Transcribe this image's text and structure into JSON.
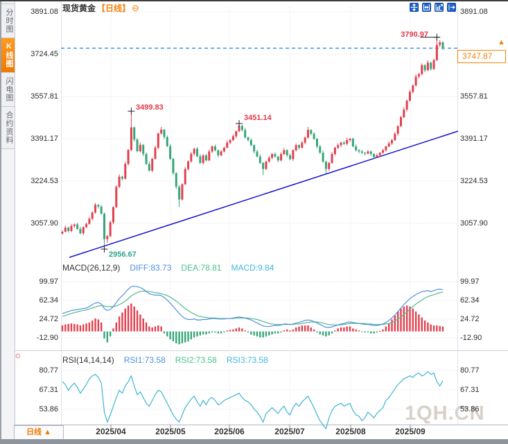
{
  "sidebar": {
    "tabs": [
      {
        "label": "分时图",
        "active": false
      },
      {
        "label": "K线图",
        "active": true
      },
      {
        "label": "闪电图",
        "active": false
      },
      {
        "label": "合约资料",
        "active": false
      }
    ]
  },
  "header": {
    "symbol": "现货黄金",
    "period": "【日线】",
    "zoom_icon": "⊖"
  },
  "toolbar": {
    "icons": [
      "crosshair-icon",
      "axis-scale-icon",
      "indicator-chart-icon",
      "exit-icon"
    ]
  },
  "main_axis": {
    "labels": [
      "3891.08",
      "3724.45",
      "3557.81",
      "3391.17",
      "3224.53",
      "3057.90"
    ]
  },
  "x_axis": {
    "labels": [
      "2025/04",
      "2025/05",
      "2025/06",
      "2025/07",
      "2025/08",
      "2025/09"
    ]
  },
  "macd_panel": {
    "title": "MACD(26,12,9)",
    "diff_label": "DIFF:83.73",
    "dea_label": "DEA:78.81",
    "macd_label": "MACD:9.84",
    "axis": [
      "99.97",
      "62.34",
      "24.72",
      "-12.90"
    ]
  },
  "rsi_panel": {
    "title": "RSI(14,14,14)",
    "rsi1_label": "RSI1:73.58",
    "rsi2_label": "RSI2:73.58",
    "rsi3_label": "RSI3:73.58",
    "axis": [
      "80.77",
      "67.31",
      "53.86"
    ]
  },
  "annotations": {
    "high_all": "3790.97",
    "high_april": "3499.83",
    "high_june": "3451.14",
    "low": "2956.67"
  },
  "price_box": {
    "value": "3747.87",
    "pin": "▲"
  },
  "footer": {
    "period_label": "日线",
    "arrow": "▲"
  },
  "watermark": "1QH.CN",
  "colors": {
    "up": "#e23f4d",
    "down": "#36a678",
    "accent_orange": "#f5820b",
    "diff_line": "#4f8fe0",
    "dea_line": "#52b98a",
    "rsi_line": "#3fb3d4",
    "trend_line": "#1111cc",
    "price_line": "#2e8be6",
    "annotation_red": "#e0394a",
    "annotation_green": "#2ea58c",
    "grid": "#dcdfec"
  },
  "chart_data": [
    {
      "type": "candlestick",
      "title": "现货黄金 日线",
      "x_labels": [
        "2025/04",
        "2025/05",
        "2025/06",
        "2025/07",
        "2025/08",
        "2025/09"
      ],
      "y_ticks": [
        3891.08,
        3724.45,
        3557.81,
        3391.17,
        3224.53,
        3057.9
      ],
      "current_price": 3747.87,
      "marked_high": 3790.97,
      "marked_low": 2956.67,
      "local_highs": [
        3499.83,
        3451.14
      ],
      "trendline": {
        "from_price": 2932,
        "to_price": 3420
      },
      "ohlc": [
        [
          3018,
          3030,
          3014,
          3025
        ],
        [
          3025,
          3049,
          3022,
          3041
        ],
        [
          3041,
          3045,
          3022,
          3028
        ],
        [
          3028,
          3055,
          3023,
          3048
        ],
        [
          3048,
          3057,
          3040,
          3054
        ],
        [
          3054,
          3060,
          3032,
          3036
        ],
        [
          3036,
          3045,
          3014,
          3019
        ],
        [
          3019,
          3047,
          3012,
          3043
        ],
        [
          3043,
          3061,
          3039,
          3056
        ],
        [
          3056,
          3084,
          3053,
          3076
        ],
        [
          3076,
          3105,
          3070,
          3101
        ],
        [
          3101,
          3138,
          3096,
          3131
        ],
        [
          3131,
          3134,
          3116,
          3124
        ],
        [
          3124,
          3130,
          3092,
          3096
        ],
        [
          3096,
          3101,
          2956.67,
          2996
        ],
        [
          2996,
          3012,
          2981,
          3008
        ],
        [
          3008,
          3069,
          3003,
          3062
        ],
        [
          3062,
          3125,
          3054,
          3122
        ],
        [
          3122,
          3208,
          3118,
          3202
        ],
        [
          3202,
          3251,
          3197,
          3242
        ],
        [
          3242,
          3246,
          3227,
          3234
        ],
        [
          3234,
          3300,
          3231,
          3292
        ],
        [
          3292,
          3351,
          3286,
          3347
        ],
        [
          3347,
          3499.83,
          3342,
          3436
        ],
        [
          3436,
          3439,
          3380,
          3388
        ],
        [
          3388,
          3394,
          3338,
          3342
        ],
        [
          3342,
          3376,
          3337,
          3367
        ],
        [
          3367,
          3371,
          3323,
          3331
        ],
        [
          3331,
          3337,
          3288,
          3292
        ],
        [
          3292,
          3301,
          3261,
          3266
        ],
        [
          3266,
          3316,
          3259,
          3312
        ],
        [
          3312,
          3364,
          3309,
          3356
        ],
        [
          3356,
          3416,
          3350,
          3412
        ],
        [
          3412,
          3438,
          3407,
          3427
        ],
        [
          3427,
          3430,
          3390,
          3398
        ],
        [
          3398,
          3404,
          3358,
          3362
        ],
        [
          3362,
          3371,
          3307,
          3312
        ],
        [
          3312,
          3316,
          3249,
          3256
        ],
        [
          3256,
          3259,
          3194,
          3202
        ],
        [
          3202,
          3208,
          3122,
          3152
        ],
        [
          3152,
          3216,
          3148,
          3212
        ],
        [
          3212,
          3280,
          3209,
          3272
        ],
        [
          3272,
          3306,
          3266,
          3302
        ],
        [
          3302,
          3339,
          3297,
          3332
        ],
        [
          3332,
          3355,
          3324,
          3352
        ],
        [
          3352,
          3358,
          3318,
          3322
        ],
        [
          3322,
          3331,
          3291,
          3296
        ],
        [
          3296,
          3330,
          3289,
          3326
        ],
        [
          3326,
          3331,
          3302,
          3306
        ],
        [
          3306,
          3349,
          3303,
          3341
        ],
        [
          3341,
          3365,
          3335,
          3361
        ],
        [
          3361,
          3368,
          3341,
          3346
        ],
        [
          3346,
          3349,
          3318,
          3326
        ],
        [
          3326,
          3347,
          3322,
          3341
        ],
        [
          3341,
          3360,
          3337,
          3356
        ],
        [
          3356,
          3384,
          3353,
          3376
        ],
        [
          3376,
          3390,
          3370,
          3386
        ],
        [
          3386,
          3408,
          3381,
          3401
        ],
        [
          3401,
          3424,
          3393,
          3421
        ],
        [
          3421,
          3451.14,
          3417,
          3442
        ],
        [
          3442,
          3446,
          3419,
          3426
        ],
        [
          3426,
          3434,
          3393,
          3396
        ],
        [
          3396,
          3400,
          3380,
          3386
        ],
        [
          3386,
          3393,
          3361,
          3366
        ],
        [
          3366,
          3369,
          3333,
          3341
        ],
        [
          3341,
          3347,
          3317,
          3321
        ],
        [
          3321,
          3330,
          3291,
          3296
        ],
        [
          3296,
          3300,
          3248,
          3272
        ],
        [
          3272,
          3305,
          3268,
          3301
        ],
        [
          3301,
          3324,
          3298,
          3316
        ],
        [
          3316,
          3335,
          3310,
          3331
        ],
        [
          3331,
          3338,
          3316,
          3321
        ],
        [
          3321,
          3324,
          3298,
          3306
        ],
        [
          3306,
          3337,
          3302,
          3331
        ],
        [
          3331,
          3355,
          3326,
          3346
        ],
        [
          3346,
          3350,
          3319,
          3326
        ],
        [
          3326,
          3332,
          3306,
          3311
        ],
        [
          3311,
          3350,
          3304,
          3346
        ],
        [
          3346,
          3373,
          3341,
          3366
        ],
        [
          3366,
          3369,
          3348,
          3356
        ],
        [
          3356,
          3382,
          3352,
          3376
        ],
        [
          3376,
          3400,
          3369,
          3396
        ],
        [
          3396,
          3438,
          3391,
          3426
        ],
        [
          3426,
          3429,
          3404,
          3411
        ],
        [
          3411,
          3418,
          3386,
          3391
        ],
        [
          3391,
          3394,
          3353,
          3361
        ],
        [
          3361,
          3367,
          3332,
          3336
        ],
        [
          3336,
          3345,
          3296,
          3301
        ],
        [
          3301,
          3305,
          3255,
          3272
        ],
        [
          3272,
          3300,
          3265,
          3296
        ],
        [
          3296,
          3339,
          3293,
          3331
        ],
        [
          3331,
          3360,
          3325,
          3356
        ],
        [
          3356,
          3373,
          3351,
          3366
        ],
        [
          3366,
          3379,
          3358,
          3376
        ],
        [
          3376,
          3382,
          3367,
          3371
        ],
        [
          3371,
          3395,
          3366,
          3386
        ],
        [
          3386,
          3395,
          3379,
          3391
        ],
        [
          3391,
          3396,
          3357,
          3361
        ],
        [
          3361,
          3369,
          3341,
          3346
        ],
        [
          3346,
          3350,
          3333,
          3341
        ],
        [
          3341,
          3348,
          3331,
          3336
        ],
        [
          3336,
          3339,
          3325,
          3333
        ],
        [
          3333,
          3347,
          3329,
          3341
        ],
        [
          3341,
          3345,
          3323,
          3331
        ],
        [
          3331,
          3335,
          3311,
          3319
        ],
        [
          3319,
          3333,
          3315,
          3326
        ],
        [
          3326,
          3339,
          3318,
          3336
        ],
        [
          3336,
          3352,
          3332,
          3346
        ],
        [
          3346,
          3364,
          3340,
          3361
        ],
        [
          3361,
          3380,
          3357,
          3373
        ],
        [
          3373,
          3390,
          3367,
          3386
        ],
        [
          3386,
          3418,
          3382,
          3411
        ],
        [
          3411,
          3444,
          3403,
          3441
        ],
        [
          3441,
          3482,
          3437,
          3476
        ],
        [
          3476,
          3515,
          3472,
          3506
        ],
        [
          3506,
          3545,
          3499,
          3541
        ],
        [
          3541,
          3584,
          3537,
          3576
        ],
        [
          3576,
          3605,
          3569,
          3601
        ],
        [
          3601,
          3645,
          3597,
          3636
        ],
        [
          3636,
          3650,
          3628,
          3646
        ],
        [
          3646,
          3688,
          3641,
          3681
        ],
        [
          3681,
          3685,
          3653,
          3661
        ],
        [
          3661,
          3700,
          3657,
          3691
        ],
        [
          3691,
          3695,
          3659,
          3666
        ],
        [
          3666,
          3707,
          3662,
          3701
        ],
        [
          3701,
          3790.97,
          3696,
          3761
        ],
        [
          3761,
          3779,
          3752,
          3771
        ],
        [
          3771,
          3776,
          3740,
          3747.87
        ]
      ]
    },
    {
      "type": "macd",
      "params": [
        26,
        12,
        9
      ],
      "y_ticks": [
        99.97,
        62.34,
        24.72,
        -12.9
      ],
      "last": {
        "diff": 83.73,
        "dea": 78.81,
        "macd": 9.84
      },
      "diff": [
        36,
        38,
        40,
        42,
        43,
        44,
        45,
        46,
        47,
        50,
        54,
        57,
        58,
        55,
        46,
        42,
        44,
        50,
        58,
        66,
        72,
        78,
        85,
        90,
        91,
        90,
        88,
        85,
        80,
        76,
        74,
        73,
        73,
        72,
        68,
        63,
        57,
        50,
        43,
        36,
        30,
        26,
        24,
        24,
        25,
        23,
        23,
        24,
        24,
        25,
        26,
        26,
        25,
        25,
        25,
        26,
        26,
        27,
        28,
        29,
        28,
        27,
        25,
        23,
        20,
        17,
        14,
        11,
        10,
        10,
        11,
        12,
        12,
        13,
        15,
        15,
        14,
        15,
        17,
        18,
        20,
        22,
        23,
        22,
        20,
        17,
        14,
        11,
        8,
        8,
        9,
        11,
        13,
        15,
        16,
        18,
        19,
        18,
        17,
        16,
        15,
        14,
        14,
        13,
        12,
        12,
        13,
        15,
        18,
        22,
        27,
        33,
        40,
        47,
        54,
        60,
        66,
        70,
        74,
        77,
        80,
        81,
        82,
        80,
        82,
        84,
        85,
        83.73
      ],
      "dea": [
        30,
        32,
        34,
        36,
        38,
        39,
        41,
        42,
        43,
        45,
        47,
        49,
        51,
        52,
        51,
        50,
        50,
        50,
        51,
        54,
        57,
        61,
        66,
        71,
        75,
        78,
        80,
        81,
        81,
        80,
        79,
        78,
        77,
        76,
        74,
        72,
        69,
        65,
        61,
        56,
        51,
        46,
        42,
        38,
        35,
        32,
        30,
        29,
        28,
        27,
        27,
        27,
        26,
        26,
        26,
        26,
        26,
        26,
        27,
        27,
        27,
        27,
        27,
        26,
        25,
        24,
        22,
        20,
        18,
        16,
        15,
        14,
        14,
        14,
        14,
        14,
        14,
        14,
        15,
        15,
        16,
        17,
        18,
        19,
        19,
        19,
        18,
        17,
        15,
        14,
        13,
        13,
        13,
        13,
        14,
        15,
        16,
        16,
        16,
        16,
        16,
        16,
        15,
        15,
        14,
        14,
        14,
        14,
        15,
        16,
        18,
        21,
        25,
        29,
        34,
        39,
        45,
        50,
        55,
        59,
        63,
        67,
        70,
        72,
        74,
        76,
        78,
        78.81
      ],
      "hist": [
        12,
        14,
        15,
        16,
        15,
        14,
        12,
        14,
        16,
        18,
        22,
        26,
        24,
        18,
        -14,
        -22,
        -10,
        6,
        18,
        30,
        38,
        46,
        52,
        56,
        50,
        42,
        34,
        26,
        18,
        10,
        8,
        10,
        12,
        10,
        -4,
        -10,
        -16,
        -20,
        -24,
        -26,
        -24,
        -22,
        -20,
        -16,
        -12,
        -10,
        -8,
        -6,
        -6,
        -4,
        -2,
        -2,
        -4,
        -4,
        -2,
        2,
        3,
        4,
        6,
        8,
        6,
        2,
        -2,
        -6,
        -8,
        -10,
        -12,
        -12,
        -10,
        -8,
        -6,
        -4,
        -4,
        -2,
        2,
        4,
        2,
        4,
        8,
        10,
        12,
        12,
        12,
        8,
        4,
        -2,
        -6,
        -8,
        -10,
        -8,
        -4,
        2,
        6,
        8,
        8,
        10,
        10,
        6,
        4,
        2,
        -1,
        -2,
        -2,
        -4,
        -4,
        -2,
        1,
        4,
        10,
        16,
        24,
        32,
        40,
        46,
        50,
        52,
        50,
        46,
        40,
        34,
        28,
        22,
        18,
        14,
        12,
        12,
        11,
        9.84
      ]
    },
    {
      "type": "rsi",
      "params": [
        14,
        14,
        14
      ],
      "y_ticks": [
        80.77,
        67.31,
        53.86
      ],
      "last": 73.58,
      "values": [
        73,
        71,
        67,
        70,
        72,
        69,
        65,
        68,
        71,
        75,
        77,
        78,
        76,
        72,
        52,
        45,
        50,
        56,
        62,
        67,
        65,
        70,
        73,
        77,
        70,
        64,
        66,
        62,
        58,
        56,
        60,
        64,
        67,
        66,
        62,
        58,
        54,
        50,
        47,
        45,
        50,
        55,
        58,
        61,
        63,
        59,
        56,
        60,
        57,
        61,
        62,
        60,
        57,
        58,
        60,
        61,
        62,
        63,
        64,
        65,
        62,
        60,
        59,
        57,
        54,
        52,
        49,
        45,
        51,
        53,
        55,
        53,
        51,
        54,
        56,
        52,
        50,
        55,
        58,
        56,
        59,
        61,
        63,
        59,
        55,
        50,
        46,
        43,
        40.5,
        48,
        53,
        56,
        57,
        58,
        56,
        57,
        58,
        53,
        50,
        49,
        46,
        48,
        52,
        50,
        48,
        51,
        53,
        55,
        60,
        62,
        65,
        68,
        71,
        73,
        75,
        76,
        77,
        76,
        78,
        79,
        77,
        78,
        80,
        78,
        79,
        73,
        70,
        73.58
      ]
    }
  ]
}
